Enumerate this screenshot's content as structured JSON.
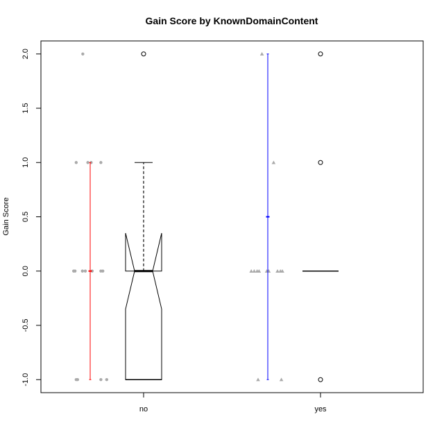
{
  "chart_data": {
    "type": "box",
    "title": "Gain Score by KnownDomainContent",
    "xlabel": "",
    "ylabel": "Gain Score",
    "ylim": [
      -1.12,
      2.12
    ],
    "yticks": [
      -1.0,
      -0.5,
      0.0,
      0.5,
      1.0,
      1.5,
      2.0
    ],
    "ytick_labels": [
      "-1.0",
      "-0.5",
      "0.0",
      "0.5",
      "1.0",
      "1.5",
      "2.0"
    ],
    "categories": [
      "no",
      "yes"
    ],
    "groups": [
      {
        "category": "no",
        "color": "#ff0000",
        "range_bar": {
          "min": -1,
          "max": 1,
          "mean": 0
        },
        "jitter_points": [
          {
            "y": 2,
            "dx": -0.38
          },
          {
            "y": 1,
            "dx": -0.72
          },
          {
            "y": 1,
            "dx": -0.12
          },
          {
            "y": 1,
            "dx": 0.05
          },
          {
            "y": 1,
            "dx": 0.55
          },
          {
            "y": 0,
            "dx": -0.85
          },
          {
            "y": 0,
            "dx": -0.78
          },
          {
            "y": 0,
            "dx": -0.4
          },
          {
            "y": 0,
            "dx": -0.25
          },
          {
            "y": 0,
            "dx": 0.1
          },
          {
            "y": 0,
            "dx": 0.55
          },
          {
            "y": 0,
            "dx": 0.65
          },
          {
            "y": -1,
            "dx": -0.72
          },
          {
            "y": -1,
            "dx": -0.65
          },
          {
            "y": -1,
            "dx": 0.55
          },
          {
            "y": -1,
            "dx": 0.85
          }
        ],
        "box": {
          "q1": -1,
          "median": 0,
          "q3": 0,
          "whisker_low": -1,
          "whisker_high": 1,
          "notch_low": -0.35,
          "notch_high": 0.35,
          "outliers": [
            2
          ]
        }
      },
      {
        "category": "yes",
        "color": "#0000ff",
        "range_bar": {
          "min": -1,
          "max": 2,
          "mean": 0.5
        },
        "jitter_points": [
          {
            "y": 2,
            "dx": -0.3
          },
          {
            "y": 1,
            "dx": 0.3
          },
          {
            "y": 0,
            "dx": -0.85
          },
          {
            "y": 0,
            "dx": -0.7
          },
          {
            "y": 0,
            "dx": -0.55
          },
          {
            "y": 0,
            "dx": -0.45
          },
          {
            "y": 0,
            "dx": -0.05
          },
          {
            "y": 0,
            "dx": 0.05
          },
          {
            "y": 0,
            "dx": 0.5
          },
          {
            "y": 0,
            "dx": 0.65
          },
          {
            "y": 0,
            "dx": 0.75
          },
          {
            "y": -1,
            "dx": -0.5
          },
          {
            "y": -1,
            "dx": 0.7
          }
        ],
        "box": {
          "q1": 0,
          "median": 0,
          "q3": 0,
          "whisker_low": 0,
          "whisker_high": 0,
          "outliers": [
            2,
            1,
            -1
          ]
        }
      }
    ],
    "grid": false,
    "legend": "none",
    "jitter_color": "#aaaaaa"
  }
}
